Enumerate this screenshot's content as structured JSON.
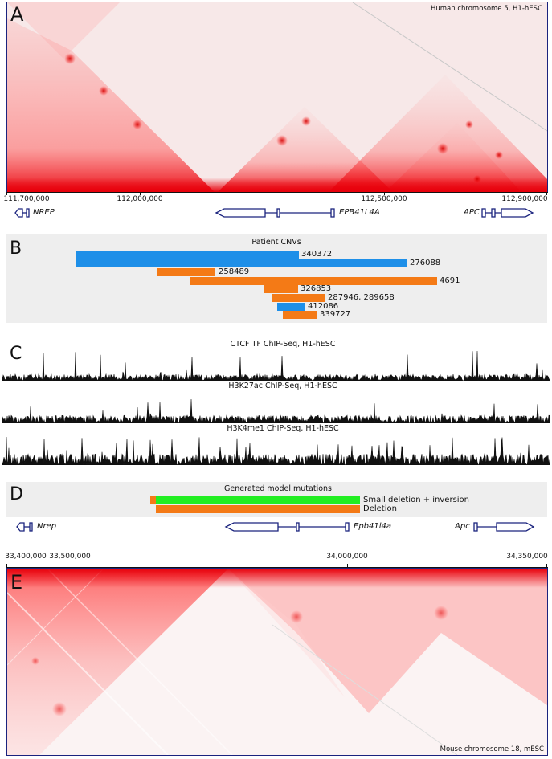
{
  "panels": {
    "a": {
      "letter": "A",
      "caption": "Human chromosome 5, H1-hESC"
    },
    "b": {
      "letter": "B",
      "title": "Patient CNVs"
    },
    "c": {
      "letter": "C"
    },
    "d": {
      "letter": "D",
      "title": "Generated model mutations"
    },
    "e": {
      "letter": "E",
      "caption": "Mouse chromosome 18, mESC"
    }
  },
  "human_axis": [
    "111,700,000",
    "112,000,000",
    "112,500,000",
    "112,900,000"
  ],
  "human_genes": {
    "nrep": "NREP",
    "epb": "EPB41L4A",
    "apc": "APC"
  },
  "cnvs": [
    {
      "label": "340372",
      "type": "deletion",
      "color": "#1e8fe8"
    },
    {
      "label": "276088",
      "type": "deletion",
      "color": "#1e8fe8"
    },
    {
      "label": "258489",
      "type": "duplication",
      "color": "#f47a16"
    },
    {
      "label": "4691",
      "type": "duplication",
      "color": "#f47a16"
    },
    {
      "label": "326853",
      "type": "duplication",
      "color": "#f47a16"
    },
    {
      "label": "287946, 289658",
      "type": "duplication",
      "color": "#f47a16"
    },
    {
      "label": "412086",
      "type": "deletion",
      "color": "#1e8fe8"
    },
    {
      "label": "339727",
      "type": "duplication",
      "color": "#f47a16"
    }
  ],
  "tracks": [
    "CTCF TF ChIP-Seq, H1-hESC",
    "H3K27ac ChIP-Seq, H1-hESC",
    "H3K4me1 ChIP-Seq, H1-hESC"
  ],
  "mutations": [
    {
      "label": "Small deletion + inversion",
      "color": "#22ee22"
    },
    {
      "label": "Deletion",
      "color": "#f47a16"
    }
  ],
  "mouse_genes": {
    "nrep": "Nrep",
    "epb": "Epb41l4a",
    "apc": "Apc"
  },
  "mouse_axis": [
    "33,400,000",
    "33,500,000",
    "34,000,000",
    "34,350,000"
  ],
  "colors": {
    "hic": "#e8000b",
    "gene": "#1a237e",
    "panel_bg": "#eeeeee"
  }
}
